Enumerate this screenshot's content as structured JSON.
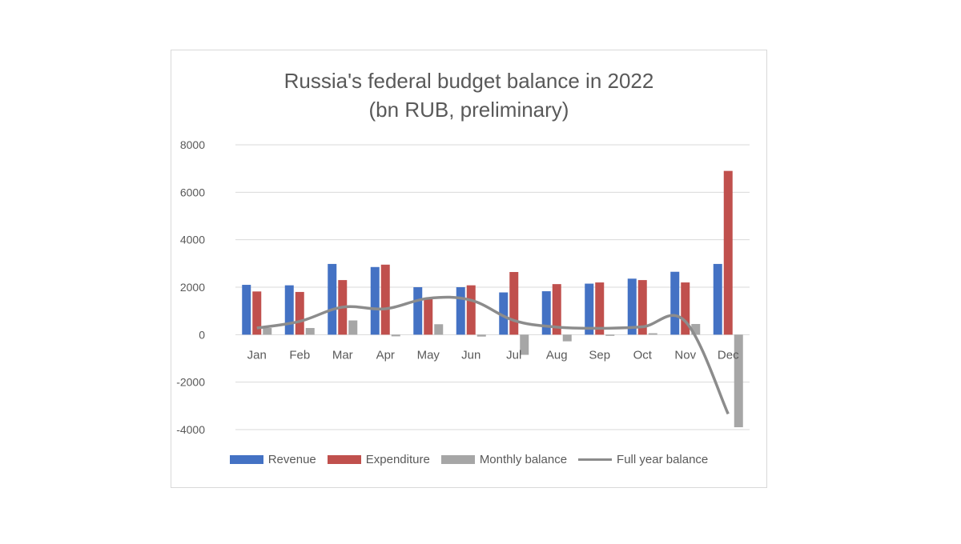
{
  "chart_data": {
    "type": "bar",
    "title": "Russia's federal budget balance in  2022",
    "subtitle": "(bn RUB, preliminary)",
    "categories": [
      "Jan",
      "Feb",
      "Mar",
      "Apr",
      "May",
      "Jun",
      "Jul",
      "Aug",
      "Sep",
      "Oct",
      "Nov",
      "Dec"
    ],
    "ylim": [
      -4000,
      8000
    ],
    "yticks": [
      "8000",
      "6000",
      "4000",
      "2000",
      "0",
      "-2000",
      "-4000"
    ],
    "grid": true,
    "legend_position": "bottom",
    "series": [
      {
        "name": "Revenue",
        "type": "bar",
        "color": "#4472c4",
        "values": [
          2100,
          2080,
          2980,
          2850,
          2000,
          2000,
          1780,
          1830,
          2150,
          2360,
          2650,
          2980
        ]
      },
      {
        "name": "Expenditure",
        "type": "bar",
        "color": "#c0504d",
        "values": [
          1820,
          1800,
          2300,
          2950,
          1560,
          2080,
          2640,
          2130,
          2200,
          2300,
          2200,
          6900
        ]
      },
      {
        "name": "Monthly balance",
        "type": "bar",
        "color": "#a6a6a6",
        "values": [
          280,
          280,
          600,
          -70,
          440,
          -80,
          -850,
          -280,
          -50,
          60,
          450,
          -3900
        ]
      },
      {
        "name": "Full year balance",
        "type": "line",
        "color": "#8c8c8c",
        "values": [
          280,
          560,
          1160,
          1090,
          1530,
          1450,
          600,
          320,
          270,
          330,
          560,
          -3340
        ]
      }
    ]
  }
}
